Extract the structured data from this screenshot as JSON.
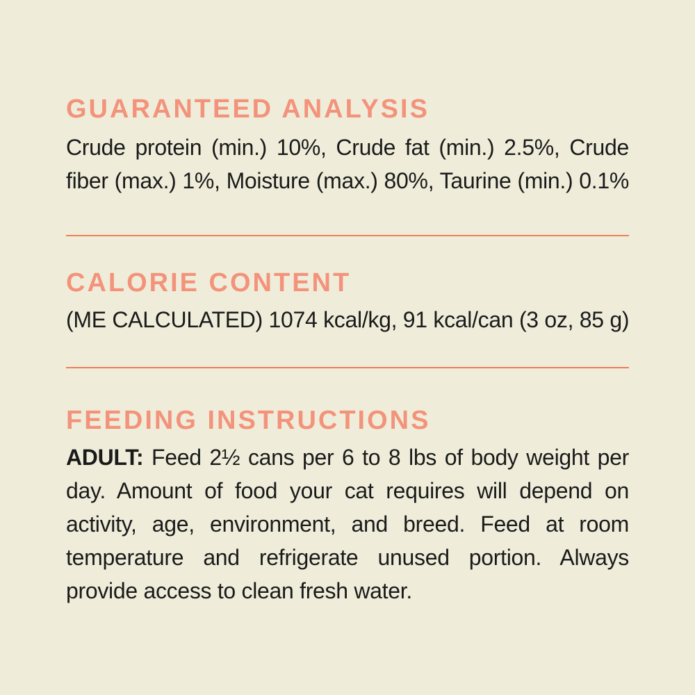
{
  "page": {
    "background_color": "#EFEDDA",
    "accent_color": "#F3937B",
    "divider_color": "#EE7E57",
    "text_color": "#1A1A1A"
  },
  "guaranteed_analysis": {
    "heading": "GUARANTEED ANALYSIS",
    "lines": [
      "Crude protein (min.) 10%, Crude fat (min.) 2.5%, Crude",
      "fiber (max.) 1%, Moisture (max.) 80%, Taurine (min.) 0.1%"
    ]
  },
  "calorie_content": {
    "heading": "CALORIE CONTENT",
    "line": "(ME CALCULATED) 1074 kcal/kg, 91 kcal/can (3 oz, 85 g)"
  },
  "feeding_instructions": {
    "heading": "FEEDING INSTRUCTIONS",
    "bold_label": "ADULT:",
    "first_line_rest": "Feed 2½ cans per 6 to 8 lbs of body weight per",
    "lines": [
      "day. Amount of food your cat requires will depend on",
      "activity, age, environment, and breed. Feed at room",
      "temperature and refrigerate unused portion. Always",
      "provide access to clean fresh water."
    ]
  }
}
